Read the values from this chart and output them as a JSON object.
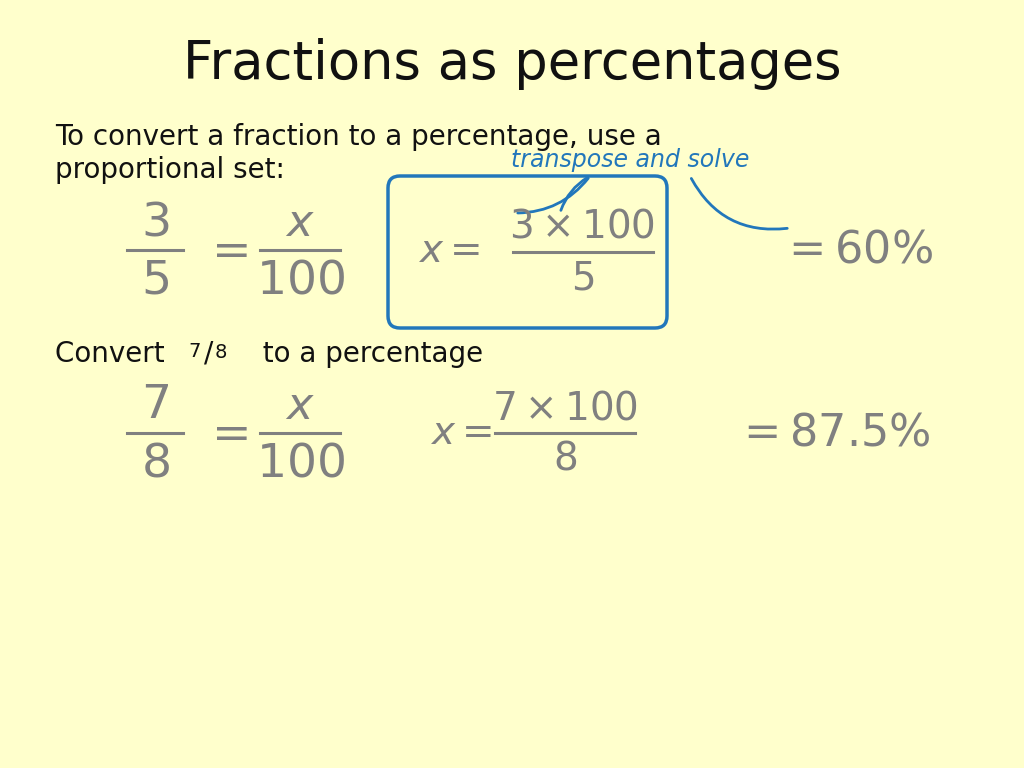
{
  "background_color": "#ffffcc",
  "title": "Fractions as percentages",
  "title_fontsize": 38,
  "title_color": "#111111",
  "body_text_color": "#111111",
  "math_color": "#808080",
  "blue_color": "#2277bb",
  "intro_text_line1": "To convert a fraction to a percentage, use a",
  "intro_text_line2": "proportional set:",
  "intro_fontsize": 20,
  "convert_fontsize": 20,
  "math_fontsize": 34,
  "small_math_fontsize": 28,
  "result_fontsize": 32,
  "annotation_fontsize": 17
}
